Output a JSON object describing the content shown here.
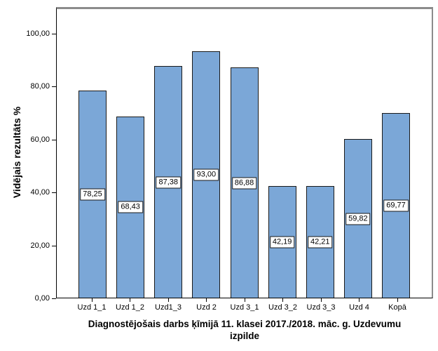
{
  "chart_data": {
    "type": "bar",
    "title": "",
    "categories": [
      "Uzd 1_1",
      "Uzd 1_2",
      "Uzd1_3",
      "Uzd 2",
      "Uzd 3_1",
      "Uzd 3_2",
      "Uzd 3_3",
      "Uzd 4",
      "Kopā"
    ],
    "values": [
      78.25,
      68.43,
      87.38,
      93.0,
      86.88,
      42.19,
      42.21,
      59.82,
      69.77
    ],
    "value_labels": [
      "78,25",
      "68,43",
      "87,38",
      "93,00",
      "86,88",
      "42,19",
      "42,21",
      "59,82",
      "69,77"
    ],
    "xlabel": "Diagnostējošais darbs ķīmijā 11. klasei 2017./2018. māc. g. Uzdevumu izpilde",
    "xlabel_lines": [
      "Diagnostējošais darbs ķīmijā 11. klasei 2017./2018. māc. g. Uzdevumu",
      "izpilde"
    ],
    "ylabel": "Vidējais rezultāts %",
    "ylim": [
      0,
      110
    ],
    "yticks": [
      0,
      20,
      40,
      60,
      80,
      100
    ],
    "ytick_labels": [
      "0,00",
      "20,00",
      "40,00",
      "60,00",
      "80,00",
      "100,00"
    ],
    "grid": false,
    "legend": "none",
    "bar_color": "#7BA7D7",
    "bar_border_color": "#1a1a1a",
    "frame_shadow_color": "#8c8c8c",
    "axis_color": "#000000",
    "label_box_bg": "#ffffff"
  }
}
